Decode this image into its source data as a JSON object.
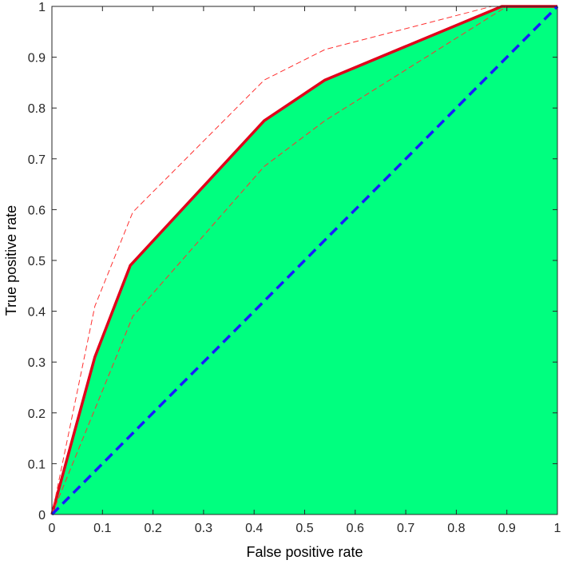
{
  "chart_data": {
    "type": "line",
    "title": "",
    "xlabel": "False positive rate",
    "ylabel": "True positive rate",
    "xlim": [
      0,
      1
    ],
    "ylim": [
      0,
      1
    ],
    "xticks": [
      0,
      0.1,
      0.2,
      0.3,
      0.4,
      0.5,
      0.6,
      0.7,
      0.8,
      0.9,
      1
    ],
    "yticks": [
      0,
      0.1,
      0.2,
      0.3,
      0.4,
      0.5,
      0.6,
      0.7,
      0.8,
      0.9,
      1
    ],
    "xtick_labels": [
      "0",
      "0.1",
      "0.2",
      "0.3",
      "0.4",
      "0.5",
      "0.6",
      "0.7",
      "0.8",
      "0.9",
      "1"
    ],
    "ytick_labels": [
      "0",
      "0.1",
      "0.2",
      "0.3",
      "0.4",
      "0.5",
      "0.6",
      "0.7",
      "0.8",
      "0.9",
      "1"
    ],
    "grid": false,
    "series": [
      {
        "role": "roc-area",
        "style": "filled-area",
        "color": "#00ff7f",
        "x": [
          0,
          0.085,
          0.155,
          0.42,
          0.54,
          0.89,
          1.0
        ],
        "y": [
          0,
          0.31,
          0.49,
          0.775,
          0.855,
          1.0,
          1.0
        ]
      },
      {
        "role": "roc-curve",
        "style": "solid-thick",
        "color": "#e0001a",
        "x": [
          0,
          0.085,
          0.155,
          0.42,
          0.54,
          0.89,
          1.0
        ],
        "y": [
          0,
          0.31,
          0.49,
          0.775,
          0.855,
          1.0,
          1.0
        ]
      },
      {
        "role": "upper-bound",
        "style": "dashed-thin",
        "color": "#ff3030",
        "x": [
          0,
          0.085,
          0.16,
          0.42,
          0.54,
          0.87,
          1.0
        ],
        "y": [
          0,
          0.41,
          0.595,
          0.855,
          0.915,
          1.0,
          1.0
        ]
      },
      {
        "role": "lower-bound",
        "style": "dashed-thin",
        "color": "#ff3030",
        "x": [
          0,
          0.16,
          0.42,
          0.54,
          0.9,
          1.0
        ],
        "y": [
          0,
          0.39,
          0.685,
          0.775,
          1.0,
          1.0
        ]
      },
      {
        "role": "chance-line",
        "style": "dashed-thick",
        "color": "#1a1aff",
        "x": [
          0,
          1
        ],
        "y": [
          0,
          1
        ]
      }
    ]
  }
}
